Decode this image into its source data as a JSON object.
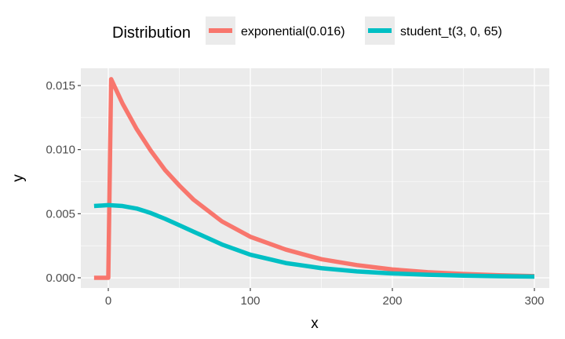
{
  "chart_data": {
    "type": "line",
    "title": "",
    "xlabel": "x",
    "ylabel": "y",
    "xlim": [
      -10,
      300
    ],
    "ylim": [
      0,
      0.015
    ],
    "x_ticks": [
      0,
      100,
      200,
      300
    ],
    "x_tick_labels": [
      "0",
      "100",
      "200",
      "300"
    ],
    "y_ticks": [
      0,
      0.005,
      0.01,
      0.015
    ],
    "y_tick_labels": [
      "0.000",
      "0.005",
      "0.010",
      "0.015"
    ],
    "grid": true,
    "background": "#ebebeb",
    "legend": {
      "title": "Distribution",
      "position": "top"
    },
    "series": [
      {
        "name": "exponential(0.016)",
        "color": "#f8766d",
        "x": [
          -10,
          0,
          2,
          10,
          20,
          30,
          40,
          50,
          60,
          80,
          100,
          125,
          150,
          175,
          200,
          225,
          250,
          275,
          300
        ],
        "y": [
          0,
          0,
          0.0155,
          0.0136,
          0.0116,
          0.0099,
          0.0084,
          0.0072,
          0.0061,
          0.0044,
          0.0032,
          0.0022,
          0.00145,
          0.00099,
          0.00065,
          0.00044,
          0.0003,
          0.0002,
          0.00013
        ]
      },
      {
        "name": "student_t(3, 0, 65)",
        "color": "#00bfc4",
        "x": [
          -10,
          0,
          10,
          20,
          30,
          40,
          50,
          60,
          80,
          100,
          125,
          150,
          175,
          200,
          225,
          250,
          275,
          300
        ],
        "y": [
          0.0056,
          0.00567,
          0.0056,
          0.0054,
          0.00505,
          0.0046,
          0.0041,
          0.0036,
          0.0026,
          0.0018,
          0.00115,
          0.00075,
          0.0005,
          0.00034,
          0.00024,
          0.00017,
          0.00012,
          9e-05
        ]
      }
    ]
  }
}
